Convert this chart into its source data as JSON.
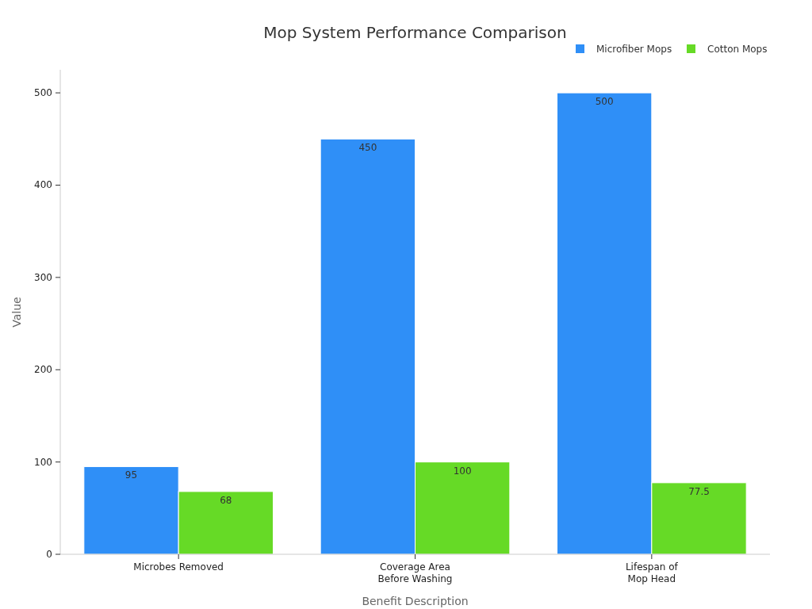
{
  "chart_data": {
    "type": "bar",
    "title": "Mop System Performance Comparison",
    "xlabel": "Benefit Description",
    "ylabel": "Value",
    "categories": [
      "Microbes Removed",
      "Coverage Area Before Washing",
      "Lifespan of Mop Head"
    ],
    "series": [
      {
        "name": "Microfiber Mops",
        "color": "#2f8ff7",
        "values": [
          95,
          450,
          500
        ]
      },
      {
        "name": "Cotton Mops",
        "color": "#66da26",
        "values": [
          68,
          100,
          77.5
        ]
      }
    ],
    "ylim": [
      0,
      525
    ],
    "yticks": [
      0,
      100,
      200,
      300,
      400,
      500
    ],
    "grid": false,
    "legend": "top right",
    "data_labels": true
  }
}
